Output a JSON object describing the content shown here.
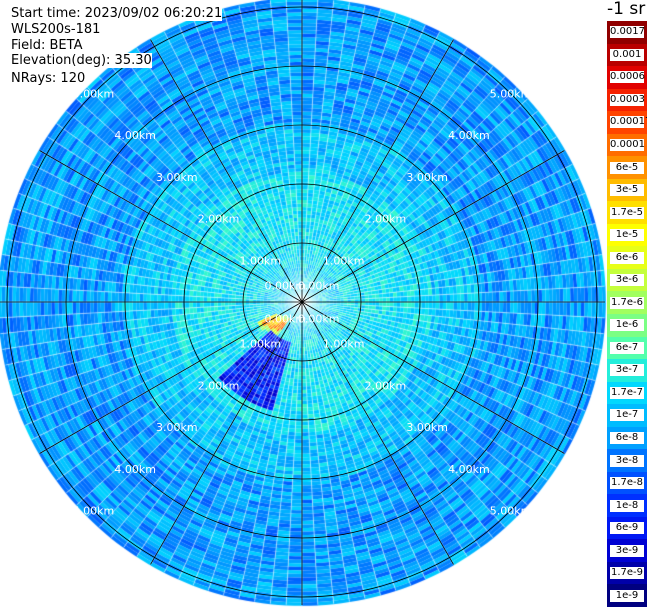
{
  "header": {
    "start_time": "Start time: 2023/09/02 06:20:21",
    "instrument": "WLS200s-181",
    "field": "Field: BETA",
    "elevation": "Elevation(deg): 35.30",
    "nrays": "NRays: 120"
  },
  "colorbar": {
    "units": "-1 sr",
    "labels": [
      "0.0017",
      "0.001",
      "0.0006",
      "0.0003",
      "0.00017",
      "0.0001",
      "6e-5",
      "3e-5",
      "1.7e-5",
      "1e-5",
      "6e-6",
      "3e-6",
      "1.7e-6",
      "1e-6",
      "6e-7",
      "3e-7",
      "1.7e-7",
      "1e-7",
      "6e-8",
      "3e-8",
      "1.7e-8",
      "1e-8",
      "6e-9",
      "3e-9",
      "1.7e-9",
      "1e-9"
    ]
  },
  "chart_data": {
    "type": "heatmap",
    "projection": "polar (PPI scan)",
    "field": "BETA",
    "n_rays": 120,
    "elevation_deg": 35.3,
    "range_rings_km": [
      1.0,
      2.0,
      3.0,
      4.0,
      5.0
    ],
    "ring_labels": [
      "0.00km",
      "1.00km",
      "2.00km",
      "3.00km",
      "4.00km",
      "5.00km"
    ],
    "spokes_deg": [
      0,
      30,
      60,
      90,
      120,
      150,
      180,
      210,
      240,
      270,
      300,
      330
    ],
    "color_scale": "log",
    "value_range": [
      1e-09,
      0.0017
    ],
    "colormap": [
      "#000080",
      "#0000d0",
      "#0020ff",
      "#0060ff",
      "#00a0ff",
      "#00d8ff",
      "#40ffbf",
      "#90ff70",
      "#d0ff30",
      "#ffff00",
      "#ffc000",
      "#ff8000",
      "#ff3000",
      "#e00000",
      "#900000"
    ],
    "features": [
      {
        "description": "high-backscatter arc",
        "azimuth_deg": [
          215,
          245
        ],
        "range_km": [
          0.3,
          0.8
        ],
        "value_approx": "1e-5 to 1e-4"
      },
      {
        "description": "low-backscatter sector",
        "azimuth_deg": [
          195,
          225
        ],
        "range_km": [
          0.7,
          1.9
        ],
        "value_approx": "1e-8"
      }
    ]
  }
}
